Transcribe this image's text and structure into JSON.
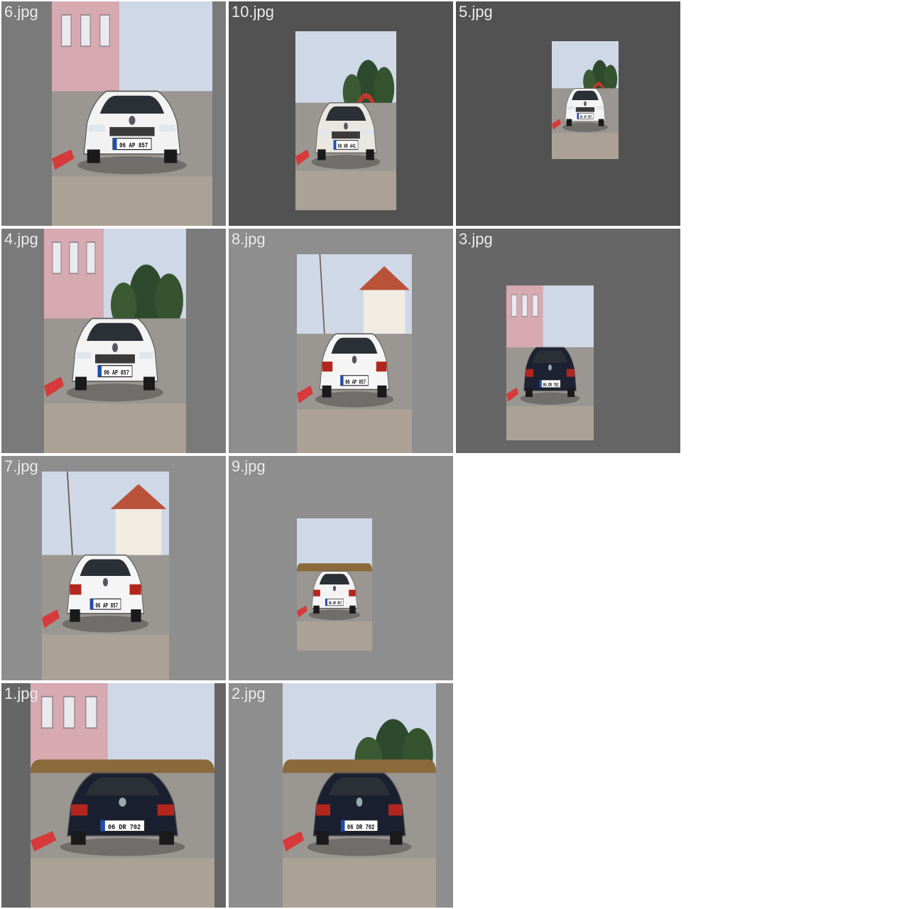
{
  "gallery": {
    "tiles": [
      {
        "filename": "6.jpg",
        "bg": "#7a7a7a",
        "car_color": "#f2f2f2",
        "view": "front",
        "plate": "06 AP 857",
        "scene": "pink-building"
      },
      {
        "filename": "10.jpg",
        "bg": "#525252",
        "car_color": "#e9e7e0",
        "view": "front",
        "plate": "06 KR 441",
        "scene": "trees-arch"
      },
      {
        "filename": "5.jpg",
        "bg": "#525252",
        "car_color": "#f4f4f4",
        "view": "front",
        "plate": "06 AP 857",
        "scene": "trees-arch"
      },
      {
        "filename": "4.jpg",
        "bg": "#7a7a7a",
        "car_color": "#f3f3f3",
        "view": "front",
        "plate": "06 AP 857",
        "scene": "trees-pink"
      },
      {
        "filename": "8.jpg",
        "bg": "#8e8e8e",
        "car_color": "#f5f5f5",
        "view": "rear",
        "plate": "06 AP 857",
        "scene": "house"
      },
      {
        "filename": "3.jpg",
        "bg": "#666666",
        "car_color": "#1d2233",
        "view": "rear",
        "plate": "06 DR 702",
        "scene": "pink-building"
      },
      {
        "filename": "7.jpg",
        "bg": "#8e8e8e",
        "car_color": "#f5f5f5",
        "view": "rear",
        "plate": "06 AP 857",
        "scene": "house"
      },
      {
        "filename": "9.jpg",
        "bg": "#8e8e8e",
        "car_color": "#f3f3f3",
        "view": "rear",
        "plate": "06 AP 857",
        "scene": "hedge"
      },
      {
        "filename": "1.jpg",
        "bg": "#666666",
        "car_color": "#1b2030",
        "view": "rear",
        "plate": "06 DR 702",
        "scene": "pink-hedge"
      },
      {
        "filename": "2.jpg",
        "bg": "#8e8e8e",
        "car_color": "#1b2030",
        "view": "rear",
        "plate": "06 DR 702",
        "scene": "trees-hedge"
      }
    ]
  }
}
